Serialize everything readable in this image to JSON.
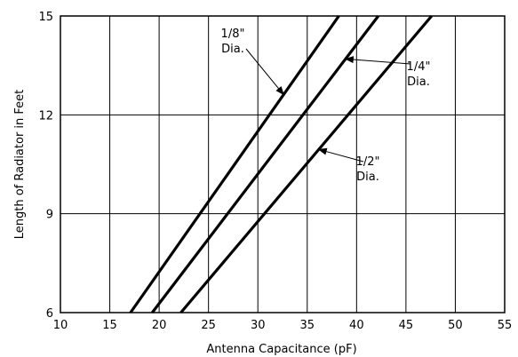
{
  "chart_data": {
    "type": "line",
    "title": "",
    "xlabel": "Antenna Capacitance (pF)",
    "ylabel": "Length of Radiator in Feet",
    "xlim": [
      10,
      55
    ],
    "ylim": [
      6,
      15
    ],
    "xticks": [
      10,
      15,
      20,
      25,
      30,
      35,
      40,
      45,
      50,
      55
    ],
    "yticks": [
      6,
      9,
      12,
      15
    ],
    "grid": true,
    "series": [
      {
        "name": "1/8\" Dia.",
        "x": [
          17.1,
          38.2
        ],
        "y": [
          6,
          15
        ]
      },
      {
        "name": "1/4\" Dia.",
        "x": [
          19.3,
          42.2
        ],
        "y": [
          6,
          15
        ]
      },
      {
        "name": "1/2\" Dia.",
        "x": [
          22.2,
          47.6
        ],
        "y": [
          6,
          15
        ]
      }
    ],
    "annotations": [
      {
        "series": 0,
        "line1": "1/8\"",
        "line2": "Dia."
      },
      {
        "series": 1,
        "line1": "1/4\"",
        "line2": "Dia."
      },
      {
        "series": 2,
        "line1": "1/2\"",
        "line2": "Dia."
      }
    ]
  }
}
